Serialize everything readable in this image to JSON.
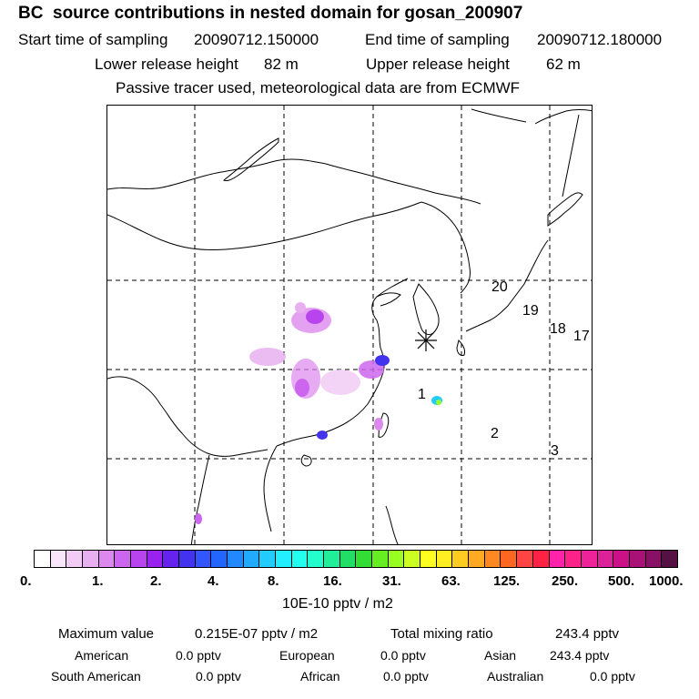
{
  "header": {
    "title": "BC  source contributions in nested domain for gosan_200907",
    "start_label": "Start time of sampling",
    "start_value": "20090712.150000",
    "end_label": "End time of sampling",
    "end_value": "20090712.180000",
    "lower_label": "Lower release height",
    "lower_value": "82 m",
    "upper_label": "Upper release height",
    "upper_value": "62 m",
    "note": "Passive tracer used, meteorological data are from ECMWF"
  },
  "map": {
    "receptor_marker": "asterisk-star",
    "labels": [
      "20",
      "19",
      "18",
      "17",
      "1",
      "2",
      "3"
    ]
  },
  "colorbar": {
    "colors": [
      "#ffffff",
      "#fae6fa",
      "#f2ccf5",
      "#e8b0f0",
      "#dd88ee",
      "#cc66ee",
      "#b844ee",
      "#9922ee",
      "#6622ee",
      "#4433ee",
      "#3355ff",
      "#2266ff",
      "#2288ff",
      "#22aaff",
      "#22ccff",
      "#22eeff",
      "#22ffee",
      "#22ffcc",
      "#22ee99",
      "#22dd66",
      "#33dd33",
      "#66ee22",
      "#99ff22",
      "#ccff22",
      "#ffff22",
      "#ffee22",
      "#ffcc22",
      "#ffaa22",
      "#ff8822",
      "#ff6622",
      "#ff4444",
      "#ff2244",
      "#ff22aa",
      "#ff2288",
      "#ee2299",
      "#dd2299",
      "#cc1188",
      "#aa1177",
      "#881166",
      "#551144"
    ],
    "ticks": [
      "0.",
      "1.",
      "2.",
      "4.",
      "8.",
      "16.",
      "31.",
      "63.",
      "125.",
      "250.",
      "500.",
      "1000."
    ],
    "units": "10E-10 pptv / m2"
  },
  "footer": {
    "max_label": "Maximum value",
    "max_value": "0.215E-07 pptv / m2",
    "total_label": "Total mixing ratio",
    "total_value": "243.4 pptv",
    "american_label": "American",
    "american_value": "0.0 pptv",
    "european_label": "European",
    "european_value": "0.0 pptv",
    "asian_label": "Asian",
    "asian_value": "243.4 pptv",
    "south_american_label": "South American",
    "south_american_value": "0.0 pptv",
    "african_label": "African",
    "african_value": "0.0 pptv",
    "australian_label": "Australian",
    "australian_value": "0.0 pptv"
  }
}
